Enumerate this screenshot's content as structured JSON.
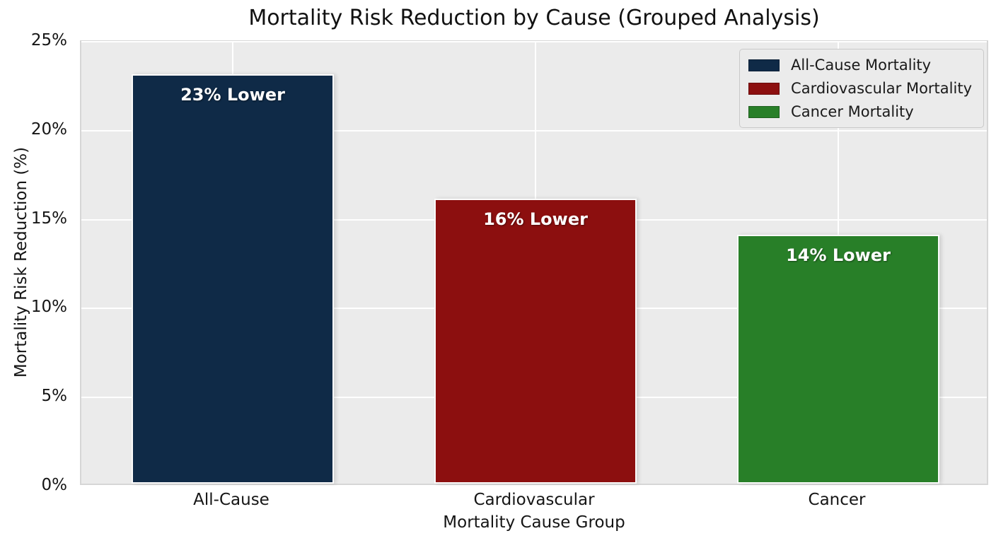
{
  "title": "Mortality Risk Reduction by Cause (Grouped Analysis)",
  "axes": {
    "x_label": "Mortality Cause Group",
    "y_label": "Mortality Risk Reduction (%)",
    "y_ticks": [
      {
        "value": 0,
        "label": "0%"
      },
      {
        "value": 5,
        "label": "5%"
      },
      {
        "value": 10,
        "label": "10%"
      },
      {
        "value": 15,
        "label": "15%"
      },
      {
        "value": 20,
        "label": "20%"
      },
      {
        "value": 25,
        "label": "25%"
      }
    ]
  },
  "legend": {
    "items": [
      {
        "label": "All-Cause Mortality",
        "color": "#0f2a47"
      },
      {
        "label": "Cardiovascular Mortality",
        "color": "#8c0f0f"
      },
      {
        "label": "Cancer Mortality",
        "color": "#287f28"
      }
    ]
  },
  "chart_data": {
    "type": "bar",
    "title": "Mortality Risk Reduction by Cause (Grouped Analysis)",
    "categories": [
      "All-Cause",
      "Cardiovascular",
      "Cancer"
    ],
    "values": [
      23,
      16,
      14
    ],
    "bar_labels": [
      "23% Lower",
      "16% Lower",
      "14% Lower"
    ],
    "bar_colors": [
      "#0f2a47",
      "#8c0f0f",
      "#287f28"
    ],
    "series_legend": [
      "All-Cause Mortality",
      "Cardiovascular Mortality",
      "Cancer Mortality"
    ],
    "xlabel": "Mortality Cause Group",
    "ylabel": "Mortality Risk Reduction (%)",
    "ylim": [
      0,
      25
    ],
    "ytick_format": "percent",
    "grid": true,
    "legend_position": "upper-right"
  },
  "colors": {
    "figure_bg": "#ffffff",
    "plot_bg": "#ebebeb",
    "gridline": "#ffffff",
    "bar_edge": "#fbfbfb",
    "text": "#151515"
  }
}
